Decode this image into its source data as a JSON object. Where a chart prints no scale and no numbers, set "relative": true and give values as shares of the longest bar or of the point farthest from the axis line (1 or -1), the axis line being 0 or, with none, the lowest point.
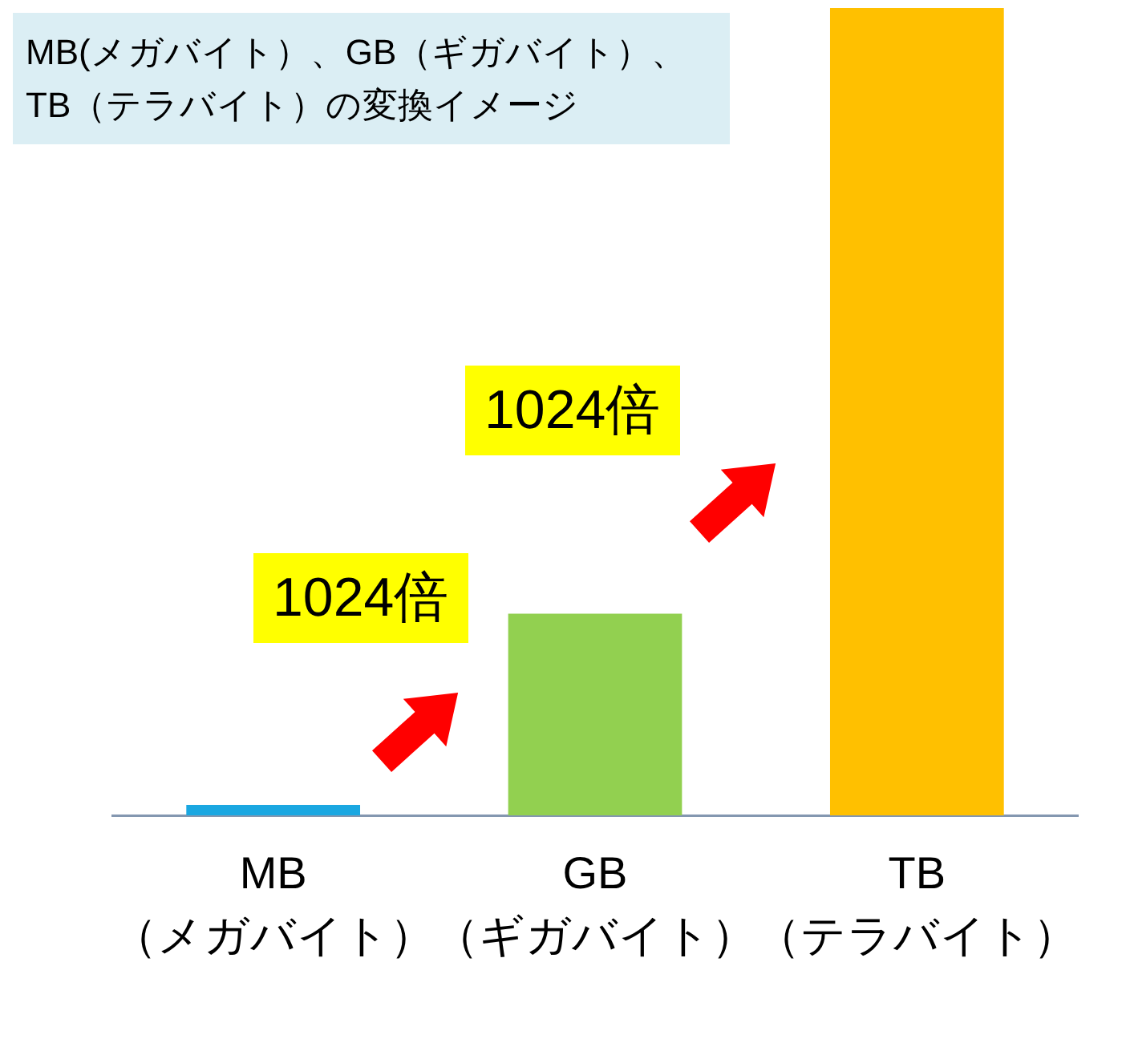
{
  "chart_data": {
    "type": "bar",
    "title": "MB(メガバイト）、GB（ギガバイト）、\nTB（テラバイト）の変換イメージ",
    "categories": [
      "MB\n（メガバイト）",
      "GB\n（ギガバイト）",
      "TB\n（テラバイト）"
    ],
    "values": [
      0.013,
      0.25,
      1
    ],
    "colors": [
      "#1aa7e1",
      "#92d050",
      "#ffc000"
    ],
    "relative": true,
    "annotations": [
      "1024倍",
      "1024倍"
    ]
  }
}
